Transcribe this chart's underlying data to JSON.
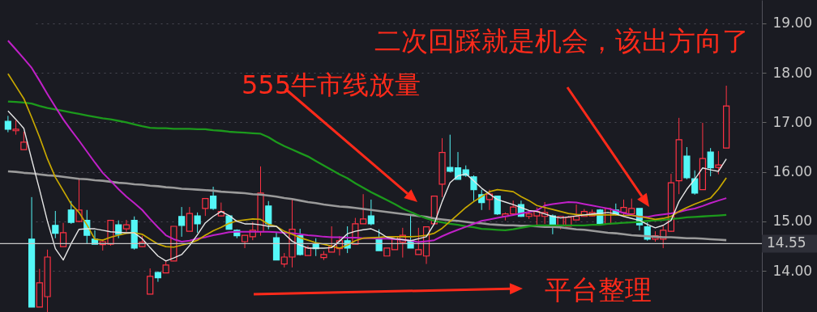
{
  "chart_data": {
    "type": "candlestick",
    "categories": [
      null,
      null,
      null,
      null,
      null,
      null,
      null,
      null,
      null,
      null,
      null,
      null,
      null,
      null,
      null,
      null,
      null,
      null,
      null,
      null,
      null,
      null,
      null,
      null,
      null,
      null,
      null,
      null,
      null,
      null,
      null,
      null,
      null,
      null,
      null,
      null,
      null,
      null,
      null,
      null,
      null,
      null,
      null,
      null,
      null,
      null,
      null,
      null,
      null,
      null,
      null,
      null,
      null,
      null,
      null,
      null,
      null,
      null,
      null,
      null,
      null,
      null,
      null,
      null,
      null,
      null,
      null,
      null,
      null,
      null,
      null,
      null,
      null,
      null,
      null,
      null,
      null,
      null,
      null,
      null,
      null,
      null,
      null,
      null,
      null,
      null,
      null,
      null,
      null,
      null,
      null,
      null
    ],
    "ohlc": [
      [
        17.02,
        17.13,
        16.8,
        16.86
      ],
      [
        16.83,
        17.04,
        16.75,
        16.86
      ],
      [
        16.45,
        16.81,
        16.45,
        16.6
      ],
      [
        14.64,
        15.49,
        13.27,
        13.27
      ],
      [
        13.27,
        14.04,
        13.27,
        13.76
      ],
      [
        13.48,
        14.43,
        13.17,
        14.28
      ],
      [
        14.92,
        15.21,
        14.66,
        14.76
      ],
      [
        14.49,
        14.97,
        14.49,
        14.77
      ],
      [
        15.23,
        15.41,
        14.95,
        14.98
      ],
      [
        15.0,
        15.88,
        14.98,
        15.23
      ],
      [
        15.02,
        15.23,
        14.54,
        14.72
      ],
      [
        14.64,
        14.82,
        14.54,
        14.54
      ],
      [
        14.53,
        14.64,
        14.41,
        14.59
      ],
      [
        14.54,
        15.03,
        14.51,
        15.02
      ],
      [
        14.93,
        15.02,
        14.66,
        14.74
      ],
      [
        14.85,
        15.03,
        14.79,
        14.93
      ],
      [
        15.02,
        15.1,
        14.43,
        14.46
      ],
      [
        14.49,
        14.71,
        14.48,
        14.58
      ],
      [
        13.53,
        14.05,
        13.53,
        13.89
      ],
      [
        13.97,
        13.99,
        13.78,
        13.86
      ],
      [
        13.96,
        14.2,
        13.96,
        14.12
      ],
      [
        14.2,
        14.9,
        14.2,
        14.9
      ],
      [
        15.1,
        15.29,
        14.69,
        14.92
      ],
      [
        14.8,
        15.29,
        14.8,
        15.16
      ],
      [
        15.11,
        15.18,
        14.77,
        14.95
      ],
      [
        15.26,
        15.46,
        15.11,
        15.46
      ],
      [
        15.51,
        15.7,
        15.23,
        15.26
      ],
      [
        15.11,
        15.38,
        15.1,
        15.2
      ],
      [
        15.11,
        15.13,
        14.84,
        14.84
      ],
      [
        14.82,
        14.84,
        14.66,
        14.71
      ],
      [
        14.59,
        14.72,
        14.46,
        14.72
      ],
      [
        14.69,
        14.98,
        14.62,
        14.82
      ],
      [
        14.79,
        16.11,
        14.71,
        15.57
      ],
      [
        15.31,
        15.41,
        14.84,
        14.95
      ],
      [
        14.67,
        14.77,
        14.22,
        14.22
      ],
      [
        14.14,
        14.36,
        14.07,
        14.28
      ],
      [
        14.28,
        15.44,
        14.07,
        14.84
      ],
      [
        14.71,
        14.85,
        14.31,
        14.33
      ],
      [
        14.31,
        14.51,
        14.31,
        14.46
      ],
      [
        14.53,
        14.66,
        14.3,
        14.45
      ],
      [
        14.27,
        14.4,
        14.22,
        14.33
      ],
      [
        14.38,
        14.9,
        14.38,
        14.49
      ],
      [
        14.45,
        14.7,
        14.31,
        14.61
      ],
      [
        14.61,
        14.9,
        14.36,
        14.46
      ],
      [
        14.54,
        15.07,
        14.54,
        14.95
      ],
      [
        14.95,
        15.55,
        14.95,
        15.05
      ],
      [
        15.11,
        15.44,
        14.92,
        14.95
      ],
      [
        14.66,
        14.84,
        14.41,
        14.41
      ],
      [
        14.3,
        14.46,
        14.3,
        14.46
      ],
      [
        14.43,
        14.69,
        14.43,
        14.69
      ],
      [
        14.58,
        14.87,
        14.27,
        14.72
      ],
      [
        14.61,
        15.11,
        14.46,
        14.46
      ],
      [
        14.33,
        14.87,
        14.33,
        14.43
      ],
      [
        14.3,
        14.89,
        14.14,
        14.89
      ],
      [
        14.95,
        15.51,
        14.95,
        15.51
      ],
      [
        15.75,
        16.68,
        15.49,
        16.39
      ],
      [
        16.09,
        16.75,
        15.99,
        16.01
      ],
      [
        16.08,
        16.4,
        15.85,
        15.85
      ],
      [
        16.04,
        16.13,
        15.9,
        15.93
      ],
      [
        15.9,
        15.93,
        15.41,
        15.64
      ],
      [
        15.54,
        15.64,
        15.23,
        15.38
      ],
      [
        15.44,
        15.64,
        15.23,
        15.55
      ],
      [
        15.51,
        15.52,
        15.13,
        15.15
      ],
      [
        15.1,
        15.18,
        15.02,
        15.15
      ],
      [
        15.15,
        15.42,
        15.15,
        15.29
      ],
      [
        15.34,
        15.42,
        15.09,
        15.1
      ],
      [
        15.1,
        15.21,
        15.05,
        15.15
      ],
      [
        15.11,
        15.28,
        14.93,
        15.2
      ],
      [
        15.1,
        15.39,
        14.95,
        15.18
      ],
      [
        15.11,
        15.14,
        14.74,
        14.89
      ],
      [
        14.92,
        15.11,
        14.84,
        15.1
      ],
      [
        14.9,
        15.11,
        14.9,
        15.08
      ],
      [
        15.03,
        15.34,
        15.02,
        15.1
      ],
      [
        15.1,
        15.25,
        15.1,
        15.2
      ],
      [
        15.11,
        15.24,
        15.1,
        15.18
      ],
      [
        15.23,
        15.25,
        14.93,
        14.95
      ],
      [
        14.95,
        15.27,
        14.95,
        15.26
      ],
      [
        15.23,
        15.36,
        15.12,
        15.15
      ],
      [
        15.18,
        15.44,
        15.12,
        15.28
      ],
      [
        15.15,
        15.46,
        15.12,
        15.26
      ],
      [
        15.26,
        15.26,
        14.82,
        14.93
      ],
      [
        14.89,
        14.98,
        14.61,
        14.64
      ],
      [
        14.64,
        14.8,
        14.59,
        14.71
      ],
      [
        14.64,
        14.91,
        14.46,
        14.82
      ],
      [
        14.8,
        15.96,
        14.79,
        15.78
      ],
      [
        15.82,
        17.09,
        15.55,
        16.65
      ],
      [
        16.32,
        16.5,
        15.85,
        15.88
      ],
      [
        15.86,
        16.03,
        15.54,
        15.57
      ],
      [
        15.64,
        16.99,
        15.64,
        16.27
      ],
      [
        16.4,
        16.48,
        15.91,
        16.08
      ],
      [
        16.09,
        16.42,
        15.95,
        16.14
      ],
      [
        16.48,
        17.74,
        16.48,
        17.33
      ]
    ],
    "colors": [
      "#54f7f7",
      "#ff3344",
      "#ff3344",
      "#54f7f7",
      "#ff3344",
      "#ff3344",
      "#54f7f7",
      "#ff3344",
      "#54f7f7",
      "#ff3344",
      "#54f7f7",
      "#54f7f7",
      "#ff3344",
      "#ff3344",
      "#54f7f7",
      "#ff3344",
      "#54f7f7",
      "#ff3344",
      "#ff3344",
      "#54f7f7",
      "#ff3344",
      "#ff3344",
      "#54f7f7",
      "#ff3344",
      "#54f7f7",
      "#ff3344",
      "#54f7f7",
      "#ff3344",
      "#54f7f7",
      "#54f7f7",
      "#ff3344",
      "#ff3344",
      "#ff3344",
      "#54f7f7",
      "#54f7f7",
      "#ff3344",
      "#ff3344",
      "#54f7f7",
      "#ff3344",
      "#54f7f7",
      "#ff3344",
      "#ff3344",
      "#ff3344",
      "#54f7f7",
      "#ff3344",
      "#ff3344",
      "#54f7f7",
      "#54f7f7",
      "#ff3344",
      "#ff3344",
      "#ff3344",
      "#54f7f7",
      "#ff3344",
      "#ff3344",
      "#ff3344",
      "#ff3344",
      "#54f7f7",
      "#54f7f7",
      "#54f7f7",
      "#54f7f7",
      "#54f7f7",
      "#ff3344",
      "#54f7f7",
      "#ff3344",
      "#ff3344",
      "#54f7f7",
      "#ff3344",
      "#ff3344",
      "#ff3344",
      "#54f7f7",
      "#ff3344",
      "#ff3344",
      "#ff3344",
      "#ff3344",
      "#ff3344",
      "#54f7f7",
      "#ff3344",
      "#54f7f7",
      "#ff3344",
      "#ff3344",
      "#54f7f7",
      "#54f7f7",
      "#ff3344",
      "#ff3344",
      "#ff3344",
      "#ff3344",
      "#54f7f7",
      "#54f7f7",
      "#ff3344",
      "#54f7f7",
      "#ff3344",
      "#ff3344"
    ],
    "series": [
      {
        "type": "line",
        "color": "#9a9a9a",
        "values": [
          16.01,
          16.0,
          15.98,
          15.97,
          15.95,
          15.93,
          15.92,
          15.9,
          15.88,
          15.86,
          15.85,
          15.83,
          15.82,
          15.8,
          15.78,
          15.77,
          15.75,
          15.74,
          15.72,
          15.71,
          15.69,
          15.68,
          15.66,
          15.65,
          15.64,
          15.63,
          15.62,
          15.6,
          15.59,
          15.58,
          15.57,
          15.55,
          15.54,
          15.52,
          15.5,
          15.47,
          15.45,
          15.42,
          15.39,
          15.37,
          15.34,
          15.32,
          15.3,
          15.29,
          15.27,
          15.25,
          15.23,
          15.21,
          15.19,
          15.17,
          15.15,
          15.13,
          15.11,
          15.09,
          15.06,
          15.04,
          15.02,
          15.01,
          14.99,
          14.97,
          14.96,
          14.94,
          14.93,
          14.92,
          14.92,
          14.91,
          14.91,
          14.9,
          14.89,
          14.89,
          14.88,
          14.86,
          14.84,
          14.83,
          14.81,
          14.79,
          14.77,
          14.76,
          14.74,
          14.72,
          14.71,
          14.7,
          14.69,
          14.68,
          14.68,
          14.67,
          14.66,
          14.66,
          14.65,
          14.64,
          14.63,
          14.62
        ]
      },
      {
        "type": "line",
        "color": "#1c9a1c",
        "values": [
          17.42,
          17.41,
          17.4,
          17.38,
          17.33,
          17.29,
          17.26,
          17.23,
          17.2,
          17.17,
          17.14,
          17.11,
          17.08,
          17.06,
          17.03,
          17.0,
          16.96,
          16.92,
          16.89,
          16.88,
          16.88,
          16.87,
          16.87,
          16.87,
          16.86,
          16.86,
          16.84,
          16.83,
          16.81,
          16.8,
          16.79,
          16.78,
          16.77,
          16.7,
          16.6,
          16.52,
          16.45,
          16.38,
          16.31,
          16.22,
          16.13,
          16.04,
          15.95,
          15.87,
          15.77,
          15.68,
          15.59,
          15.51,
          15.43,
          15.35,
          15.26,
          15.19,
          15.12,
          15.06,
          15.01,
          14.98,
          14.95,
          14.93,
          14.9,
          14.88,
          14.85,
          14.84,
          14.83,
          14.82,
          14.84,
          14.87,
          14.9,
          14.92,
          14.92,
          14.92,
          14.92,
          14.92,
          14.92,
          14.92,
          14.93,
          14.93,
          14.95,
          14.96,
          14.97,
          14.98,
          14.99,
          15.01,
          15.02,
          15.03,
          15.05,
          15.06,
          15.08,
          15.09,
          15.1,
          15.11,
          15.12,
          15.13
        ]
      },
      {
        "type": "line",
        "color": "#c020c8",
        "values": [
          18.65,
          18.47,
          18.29,
          18.1,
          17.84,
          17.57,
          17.31,
          17.06,
          16.84,
          16.63,
          16.41,
          16.19,
          15.98,
          15.82,
          15.65,
          15.5,
          15.37,
          15.23,
          15.05,
          14.88,
          14.72,
          14.64,
          14.59,
          14.61,
          14.65,
          14.68,
          14.72,
          14.75,
          14.78,
          14.79,
          14.79,
          14.79,
          14.79,
          14.79,
          14.78,
          14.77,
          14.76,
          14.74,
          14.72,
          14.71,
          14.69,
          14.68,
          14.68,
          14.67,
          14.67,
          14.66,
          14.66,
          14.65,
          14.65,
          14.64,
          14.63,
          14.61,
          14.58,
          14.6,
          14.62,
          14.7,
          14.77,
          14.83,
          14.89,
          14.95,
          15.01,
          15.04,
          15.07,
          15.1,
          15.13,
          15.16,
          15.19,
          15.22,
          15.32,
          15.35,
          15.37,
          15.39,
          15.38,
          15.35,
          15.32,
          15.29,
          15.26,
          15.22,
          15.17,
          15.13,
          15.09,
          15.09,
          15.12,
          15.14,
          15.16,
          15.19,
          15.23,
          15.26,
          15.31,
          15.37,
          15.42,
          15.47
        ]
      },
      {
        "type": "line",
        "color": "#c8a800",
        "values": [
          17.98,
          17.73,
          17.48,
          17.1,
          16.7,
          16.26,
          15.89,
          15.62,
          15.35,
          15.18,
          14.93,
          14.64,
          14.62,
          14.68,
          14.72,
          14.76,
          14.77,
          14.74,
          14.64,
          14.54,
          14.49,
          14.48,
          14.52,
          14.56,
          14.62,
          14.72,
          14.81,
          14.88,
          14.96,
          15.01,
          15.03,
          15.05,
          15.04,
          14.94,
          14.9,
          14.8,
          14.74,
          14.67,
          14.62,
          14.57,
          14.54,
          14.5,
          14.46,
          14.52,
          14.61,
          14.66,
          14.67,
          14.68,
          14.69,
          14.69,
          14.69,
          14.69,
          14.7,
          14.72,
          14.76,
          14.86,
          15.0,
          15.14,
          15.28,
          15.4,
          15.5,
          15.6,
          15.64,
          15.62,
          15.6,
          15.5,
          15.42,
          15.32,
          15.28,
          15.24,
          15.2,
          15.16,
          15.14,
          15.13,
          15.13,
          15.13,
          15.13,
          15.13,
          15.12,
          15.12,
          15.1,
          15.07,
          15.04,
          15.06,
          15.1,
          15.2,
          15.28,
          15.35,
          15.41,
          15.47,
          15.65,
          15.88
        ]
      },
      {
        "type": "line",
        "color": "#e6e6e6",
        "values": [
          17.23,
          17.06,
          16.88,
          16.25,
          15.64,
          15.0,
          14.45,
          14.22,
          14.55,
          14.84,
          14.85,
          14.85,
          14.82,
          14.79,
          14.78,
          14.77,
          14.77,
          14.65,
          14.47,
          14.3,
          14.2,
          14.26,
          14.33,
          14.51,
          14.73,
          14.97,
          15.1,
          15.2,
          15.12,
          15.0,
          14.95,
          14.95,
          14.93,
          14.9,
          14.9,
          14.75,
          14.6,
          14.52,
          14.46,
          14.46,
          14.46,
          14.47,
          14.6,
          14.75,
          14.8,
          14.83,
          14.85,
          14.78,
          14.68,
          14.65,
          14.63,
          14.61,
          14.65,
          14.69,
          14.95,
          15.4,
          15.78,
          15.92,
          15.96,
          15.82,
          15.67,
          15.55,
          15.44,
          15.39,
          15.34,
          15.28,
          15.22,
          15.2,
          15.15,
          15.1,
          15.07,
          15.09,
          15.11,
          15.13,
          15.15,
          15.16,
          15.18,
          15.15,
          15.1,
          15.06,
          15.02,
          14.94,
          14.87,
          14.92,
          15.02,
          15.4,
          15.65,
          15.85,
          16.08,
          16.04,
          16.01,
          16.26
        ]
      }
    ],
    "ylim": [
      13.17,
      19.47
    ],
    "yticks": [
      {
        "value": 14,
        "label": "14.00"
      },
      {
        "value": 15,
        "label": "15.00"
      },
      {
        "value": 16,
        "label": "16.00"
      },
      {
        "value": 17,
        "label": "17.00"
      },
      {
        "value": 18,
        "label": "18.00"
      },
      {
        "value": 19,
        "label": "19.00"
      }
    ],
    "grid": "y",
    "ref_lines": [
      {
        "axis": "y",
        "value": 14.55,
        "label": "14.55",
        "color": "#c8c8c8"
      }
    ],
    "annotations": [
      "二次回踩就是机会，该出方向了",
      "555牛市线放量",
      "平台整理"
    ]
  }
}
